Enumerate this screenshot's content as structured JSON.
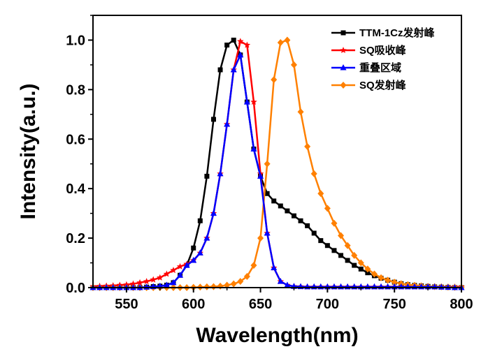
{
  "chart_data": {
    "type": "line",
    "title": "",
    "xlabel": "Wavelength(nm)",
    "ylabel": "Intensity(a.u.)",
    "xlim": [
      525,
      800
    ],
    "ylim": [
      0,
      1.1
    ],
    "xticks": [
      550,
      600,
      650,
      700,
      750,
      800
    ],
    "yticks": [
      0.0,
      0.2,
      0.4,
      0.6,
      0.8,
      1.0
    ],
    "xtick_labels": [
      "550",
      "600",
      "650",
      "700",
      "750",
      "800"
    ],
    "ytick_labels": [
      "0.0",
      "0.2",
      "0.4",
      "0.6",
      "0.8",
      "1.0"
    ],
    "grid": false,
    "legend_position": "top-right",
    "series": [
      {
        "name": "TTM-1Cz发射峰",
        "color": "#000000",
        "marker": "square",
        "x": [
          525,
          530,
          535,
          540,
          545,
          550,
          555,
          560,
          565,
          570,
          575,
          580,
          585,
          590,
          595,
          600,
          605,
          610,
          615,
          620,
          625,
          630,
          635,
          640,
          645,
          650,
          655,
          660,
          665,
          670,
          675,
          680,
          685,
          690,
          695,
          700,
          705,
          710,
          715,
          720,
          725,
          730,
          735,
          740,
          745,
          750,
          755,
          760,
          765,
          770,
          775,
          780,
          785,
          790,
          795,
          800
        ],
        "y": [
          0,
          0,
          0,
          0,
          0,
          0,
          0,
          0,
          0.002,
          0.004,
          0.006,
          0.01,
          0.02,
          0.05,
          0.09,
          0.16,
          0.27,
          0.45,
          0.68,
          0.88,
          0.98,
          1.0,
          0.94,
          0.75,
          0.56,
          0.45,
          0.38,
          0.35,
          0.33,
          0.31,
          0.29,
          0.27,
          0.25,
          0.22,
          0.19,
          0.17,
          0.15,
          0.13,
          0.11,
          0.09,
          0.075,
          0.06,
          0.048,
          0.038,
          0.03,
          0.022,
          0.016,
          0.012,
          0.009,
          0.007,
          0.005,
          0.003,
          0.002,
          0.001,
          0,
          0
        ]
      },
      {
        "name": "SQ吸收峰",
        "color": "#ff0000",
        "marker": "star",
        "x": [
          525,
          530,
          535,
          540,
          545,
          550,
          555,
          560,
          565,
          570,
          575,
          580,
          585,
          590,
          595,
          600,
          605,
          610,
          615,
          620,
          625,
          630,
          635,
          640,
          645,
          650,
          655,
          660,
          665,
          670,
          675,
          680,
          685,
          690,
          695,
          700,
          705,
          710,
          715,
          720,
          725,
          730,
          735,
          740,
          745,
          750,
          755,
          760,
          765,
          770,
          775,
          780,
          785,
          790,
          795,
          800
        ],
        "y": [
          0.005,
          0.006,
          0.007,
          0.008,
          0.01,
          0.012,
          0.015,
          0.02,
          0.025,
          0.032,
          0.04,
          0.055,
          0.07,
          0.085,
          0.095,
          0.11,
          0.14,
          0.2,
          0.3,
          0.46,
          0.66,
          0.88,
          0.995,
          0.98,
          0.75,
          0.46,
          0.22,
          0.08,
          0.025,
          0.01,
          0.005,
          0.004,
          0.003,
          0.003,
          0.003,
          0.003,
          0.003,
          0.003,
          0.003,
          0.003,
          0.003,
          0.003,
          0.003,
          0.003,
          0.003,
          0.003,
          0.003,
          0.003,
          0.003,
          0.003,
          0.003,
          0.003,
          0.003,
          0.003,
          0.003,
          0.003
        ]
      },
      {
        "name": "重叠区域",
        "color": "#0000ff",
        "marker": "triangle",
        "x": [
          525,
          530,
          535,
          540,
          545,
          550,
          555,
          560,
          565,
          570,
          575,
          580,
          585,
          590,
          595,
          600,
          605,
          610,
          615,
          620,
          625,
          630,
          635,
          640,
          645,
          650,
          655,
          660,
          665,
          670,
          675,
          680,
          685,
          690,
          695,
          700,
          705,
          710,
          715,
          720,
          725,
          730,
          735,
          740,
          745,
          750,
          755,
          760,
          765,
          770,
          775,
          780,
          785,
          790,
          795,
          800
        ],
        "y": [
          0,
          0,
          0,
          0,
          0,
          0,
          0,
          0,
          0.002,
          0.004,
          0.006,
          0.01,
          0.02,
          0.05,
          0.09,
          0.11,
          0.14,
          0.2,
          0.3,
          0.46,
          0.66,
          0.88,
          0.94,
          0.75,
          0.56,
          0.45,
          0.22,
          0.08,
          0.025,
          0.01,
          0.005,
          0.004,
          0.003,
          0.003,
          0.003,
          0.003,
          0.003,
          0.003,
          0.003,
          0.003,
          0.003,
          0.003,
          0.003,
          0.003,
          0.003,
          0.003,
          0.003,
          0.003,
          0.003,
          0.003,
          0.003,
          0.003,
          0.002,
          0.001,
          0,
          0
        ]
      },
      {
        "name": "SQ发射峰",
        "color": "#ff8000",
        "marker": "diamond",
        "x": [
          525,
          530,
          535,
          540,
          545,
          550,
          555,
          560,
          565,
          570,
          575,
          580,
          585,
          590,
          595,
          600,
          605,
          610,
          615,
          620,
          625,
          630,
          635,
          640,
          645,
          650,
          655,
          660,
          665,
          670,
          675,
          680,
          685,
          690,
          695,
          700,
          705,
          710,
          715,
          720,
          725,
          730,
          735,
          740,
          745,
          750,
          755,
          760,
          765,
          770,
          775,
          780,
          785,
          790,
          795,
          800
        ],
        "y": [
          0,
          0,
          0,
          0,
          0,
          0,
          0,
          0,
          0,
          0,
          0,
          0,
          0,
          0,
          0,
          0.001,
          0.002,
          0.003,
          0.004,
          0.006,
          0.01,
          0.015,
          0.025,
          0.045,
          0.09,
          0.2,
          0.5,
          0.84,
          0.99,
          1.0,
          0.9,
          0.71,
          0.57,
          0.46,
          0.38,
          0.32,
          0.26,
          0.21,
          0.17,
          0.13,
          0.1,
          0.075,
          0.055,
          0.04,
          0.03,
          0.022,
          0.016,
          0.012,
          0.009,
          0.007,
          0.005,
          0.004,
          0.003,
          0.002,
          0.001,
          0.001
        ]
      }
    ]
  }
}
